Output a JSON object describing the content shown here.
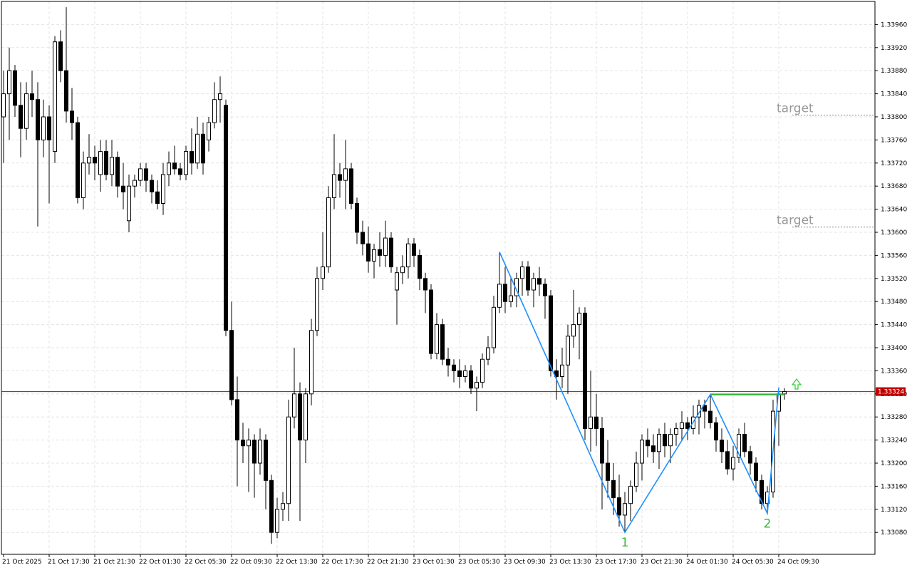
{
  "chart_data": {
    "type": "candlestick",
    "ylim": [
      1.33042,
      1.34
    ],
    "yticks": [
      {
        "value": 1.3396,
        "label": "1.33960"
      },
      {
        "value": 1.3392,
        "label": "1.33920"
      },
      {
        "value": 1.3388,
        "label": "1.33880"
      },
      {
        "value": 1.3384,
        "label": "1.33840"
      },
      {
        "value": 1.338,
        "label": "1.33800"
      },
      {
        "value": 1.3376,
        "label": "1.33760"
      },
      {
        "value": 1.3372,
        "label": "1.33720"
      },
      {
        "value": 1.3368,
        "label": "1.33680"
      },
      {
        "value": 1.3364,
        "label": "1.33640"
      },
      {
        "value": 1.336,
        "label": "1.33600"
      },
      {
        "value": 1.3356,
        "label": "1.33560"
      },
      {
        "value": 1.3352,
        "label": "1.33520"
      },
      {
        "value": 1.3348,
        "label": "1.33480"
      },
      {
        "value": 1.3344,
        "label": "1.33440"
      },
      {
        "value": 1.334,
        "label": "1.33400"
      },
      {
        "value": 1.3336,
        "label": "1.33360"
      },
      {
        "value": 1.3332,
        "label": "1.33320"
      },
      {
        "value": 1.3328,
        "label": "1.33280"
      },
      {
        "value": 1.3324,
        "label": "1.33240"
      },
      {
        "value": 1.332,
        "label": "1.33200"
      },
      {
        "value": 1.3316,
        "label": "1.33160"
      },
      {
        "value": 1.3312,
        "label": "1.33120"
      },
      {
        "value": 1.3308,
        "label": "1.33080"
      }
    ],
    "xticks": [
      {
        "value": 0,
        "label": "21 Oct 2025"
      },
      {
        "value": 8,
        "label": "21 Oct 17:30"
      },
      {
        "value": 16,
        "label": "21 Oct 21:30"
      },
      {
        "value": 24,
        "label": "22 Oct 01:30"
      },
      {
        "value": 32,
        "label": "22 Oct 05:30"
      },
      {
        "value": 40,
        "label": "22 Oct 09:30"
      },
      {
        "value": 48,
        "label": "22 Oct 13:30"
      },
      {
        "value": 56,
        "label": "22 Oct 17:30"
      },
      {
        "value": 64,
        "label": "22 Oct 21:30"
      },
      {
        "value": 72,
        "label": "23 Oct 01:30"
      },
      {
        "value": 80,
        "label": "23 Oct 05:30"
      },
      {
        "value": 88,
        "label": "23 Oct 09:30"
      },
      {
        "value": 96,
        "label": "23 Oct 13:30"
      },
      {
        "value": 104,
        "label": "23 Oct 17:30"
      },
      {
        "value": 112,
        "label": "23 Oct 21:30"
      },
      {
        "value": 120,
        "label": "24 Oct 01:30"
      },
      {
        "value": 128,
        "label": "24 Oct 05:30"
      },
      {
        "value": 136,
        "label": "24 Oct 09:30"
      }
    ],
    "grid": true,
    "ohlc": [
      [
        1.338,
        1.3388,
        1.3372,
        1.3384
      ],
      [
        1.3384,
        1.3392,
        1.3376,
        1.3388
      ],
      [
        1.3388,
        1.3389,
        1.338,
        1.3382
      ],
      [
        1.3382,
        1.3386,
        1.3373,
        1.3378
      ],
      [
        1.3378,
        1.3386,
        1.3376,
        1.3384
      ],
      [
        1.3384,
        1.3388,
        1.338,
        1.3383
      ],
      [
        1.3383,
        1.3386,
        1.3361,
        1.3376
      ],
      [
        1.3376,
        1.3383,
        1.3373,
        1.338
      ],
      [
        1.338,
        1.3382,
        1.3365,
        1.3376
      ],
      [
        1.3374,
        1.3394,
        1.3372,
        1.3393
      ],
      [
        1.3393,
        1.3395,
        1.3386,
        1.3388
      ],
      [
        1.3388,
        1.3399,
        1.3379,
        1.3381
      ],
      [
        1.3381,
        1.3385,
        1.3376,
        1.3379
      ],
      [
        1.3379,
        1.338,
        1.3365,
        1.3366
      ],
      [
        1.3366,
        1.3374,
        1.3364,
        1.3372
      ],
      [
        1.3372,
        1.3377,
        1.337,
        1.3373
      ],
      [
        1.3373,
        1.3375,
        1.3369,
        1.3372
      ],
      [
        1.337,
        1.3376,
        1.3367,
        1.3374
      ],
      [
        1.3374,
        1.3376,
        1.3369,
        1.337
      ],
      [
        1.337,
        1.3376,
        1.3368,
        1.3373
      ],
      [
        1.3373,
        1.3374,
        1.3366,
        1.3368
      ],
      [
        1.3368,
        1.3372,
        1.3364,
        1.3367
      ],
      [
        1.3362,
        1.337,
        1.336,
        1.3368
      ],
      [
        1.3368,
        1.337,
        1.3366,
        1.3369
      ],
      [
        1.3369,
        1.3372,
        1.3368,
        1.3371
      ],
      [
        1.3371,
        1.3372,
        1.3367,
        1.3369
      ],
      [
        1.3369,
        1.337,
        1.3365,
        1.3367
      ],
      [
        1.3367,
        1.3369,
        1.3364,
        1.3365
      ],
      [
        1.3365,
        1.3372,
        1.3363,
        1.337
      ],
      [
        1.337,
        1.3374,
        1.3368,
        1.3372
      ],
      [
        1.3372,
        1.3375,
        1.337,
        1.3371
      ],
      [
        1.3371,
        1.3372,
        1.3369,
        1.337
      ],
      [
        1.337,
        1.3375,
        1.3369,
        1.3374
      ],
      [
        1.3374,
        1.3378,
        1.337,
        1.3372
      ],
      [
        1.3372,
        1.338,
        1.3371,
        1.3377
      ],
      [
        1.3377,
        1.3379,
        1.337,
        1.3372
      ],
      [
        1.3376,
        1.338,
        1.3374,
        1.3379
      ],
      [
        1.3379,
        1.3386,
        1.3378,
        1.3383
      ],
      [
        1.3383,
        1.3387,
        1.3379,
        1.3384
      ],
      [
        1.3382,
        1.3383,
        1.3342,
        1.3343
      ],
      [
        1.3343,
        1.3348,
        1.333,
        1.3331
      ],
      [
        1.3331,
        1.3335,
        1.3316,
        1.3324
      ],
      [
        1.3324,
        1.3327,
        1.332,
        1.3323
      ],
      [
        1.3323,
        1.3326,
        1.3315,
        1.3324
      ],
      [
        1.3324,
        1.3325,
        1.3314,
        1.332
      ],
      [
        1.332,
        1.3326,
        1.3318,
        1.3324
      ],
      [
        1.3324,
        1.3325,
        1.3312,
        1.3317
      ],
      [
        1.3317,
        1.3318,
        1.3306,
        1.3308
      ],
      [
        1.3308,
        1.3314,
        1.3307,
        1.3312
      ],
      [
        1.3312,
        1.3315,
        1.331,
        1.3313
      ],
      [
        1.3313,
        1.3331,
        1.331,
        1.3328
      ],
      [
        1.3328,
        1.334,
        1.3326,
        1.3332
      ],
      [
        1.3332,
        1.3334,
        1.331,
        1.3324
      ],
      [
        1.3324,
        1.3333,
        1.332,
        1.3332
      ],
      [
        1.3332,
        1.3345,
        1.333,
        1.3343
      ],
      [
        1.3343,
        1.3354,
        1.3342,
        1.3352
      ],
      [
        1.3352,
        1.336,
        1.335,
        1.3354
      ],
      [
        1.3354,
        1.3368,
        1.3353,
        1.3366
      ],
      [
        1.3366,
        1.3377,
        1.3364,
        1.337
      ],
      [
        1.337,
        1.3372,
        1.3366,
        1.3369
      ],
      [
        1.3369,
        1.3376,
        1.3364,
        1.3371
      ],
      [
        1.3371,
        1.3372,
        1.3364,
        1.3365
      ],
      [
        1.3365,
        1.3366,
        1.3358,
        1.336
      ],
      [
        1.336,
        1.3362,
        1.3356,
        1.3358
      ],
      [
        1.3358,
        1.3361,
        1.3353,
        1.3355
      ],
      [
        1.3355,
        1.3358,
        1.3352,
        1.3357
      ],
      [
        1.3357,
        1.336,
        1.3354,
        1.3356
      ],
      [
        1.3356,
        1.3362,
        1.3354,
        1.3359
      ],
      [
        1.3359,
        1.336,
        1.3353,
        1.3354
      ],
      [
        1.335,
        1.3354,
        1.3344,
        1.3353
      ],
      [
        1.3353,
        1.3356,
        1.3351,
        1.3354
      ],
      [
        1.3354,
        1.3359,
        1.3352,
        1.3358
      ],
      [
        1.3358,
        1.3359,
        1.3354,
        1.3356
      ],
      [
        1.3356,
        1.3357,
        1.335,
        1.3352
      ],
      [
        1.3352,
        1.3353,
        1.3346,
        1.335
      ],
      [
        1.335,
        1.3351,
        1.3338,
        1.3339
      ],
      [
        1.3339,
        1.3346,
        1.3338,
        1.3344
      ],
      [
        1.3344,
        1.3345,
        1.3337,
        1.3338
      ],
      [
        1.3338,
        1.334,
        1.3335,
        1.3337
      ],
      [
        1.3337,
        1.3338,
        1.3334,
        1.3336
      ],
      [
        1.3336,
        1.3338,
        1.3333,
        1.3335
      ],
      [
        1.3335,
        1.3337,
        1.3334,
        1.3336
      ],
      [
        1.3336,
        1.3337,
        1.3332,
        1.3333
      ],
      [
        1.3333,
        1.3335,
        1.3329,
        1.3334
      ],
      [
        1.3334,
        1.3339,
        1.3333,
        1.3338
      ],
      [
        1.3338,
        1.3342,
        1.3337,
        1.334
      ],
      [
        1.334,
        1.3349,
        1.3339,
        1.3347
      ],
      [
        1.3347,
        1.33566,
        1.3346,
        1.3351
      ],
      [
        1.3351,
        1.3354,
        1.3346,
        1.3348
      ],
      [
        1.3348,
        1.3352,
        1.3347,
        1.3349
      ],
      [
        1.3349,
        1.3353,
        1.3347,
        1.3352
      ],
      [
        1.3352,
        1.3355,
        1.3349,
        1.3354
      ],
      [
        1.3354,
        1.3355,
        1.3349,
        1.335
      ],
      [
        1.335,
        1.3353,
        1.3347,
        1.3352
      ],
      [
        1.3352,
        1.3354,
        1.3349,
        1.3351
      ],
      [
        1.3351,
        1.3352,
        1.3345,
        1.3349
      ],
      [
        1.3349,
        1.335,
        1.3335,
        1.3336
      ],
      [
        1.3336,
        1.3338,
        1.3331,
        1.3335
      ],
      [
        1.3335,
        1.334,
        1.3333,
        1.3337
      ],
      [
        1.3337,
        1.3344,
        1.3332,
        1.3342
      ],
      [
        1.3342,
        1.335,
        1.334,
        1.3344
      ],
      [
        1.3344,
        1.3347,
        1.3338,
        1.3346
      ],
      [
        1.3346,
        1.3347,
        1.3324,
        1.3326
      ],
      [
        1.3326,
        1.3336,
        1.3322,
        1.3328
      ],
      [
        1.3328,
        1.3332,
        1.3323,
        1.3326
      ],
      [
        1.3326,
        1.3328,
        1.3312,
        1.332
      ],
      [
        1.332,
        1.3324,
        1.3314,
        1.3317
      ],
      [
        1.3317,
        1.332,
        1.3311,
        1.3314
      ],
      [
        1.3314,
        1.3318,
        1.3309,
        1.3311
      ],
      [
        1.3311,
        1.3315,
        1.3308,
        1.3313
      ],
      [
        1.3313,
        1.3317,
        1.331,
        1.3316
      ],
      [
        1.3316,
        1.3322,
        1.3315,
        1.332
      ],
      [
        1.332,
        1.3325,
        1.3317,
        1.3324
      ],
      [
        1.3324,
        1.3326,
        1.3321,
        1.3323
      ],
      [
        1.3323,
        1.3325,
        1.332,
        1.3322
      ],
      [
        1.3322,
        1.3326,
        1.3319,
        1.3325
      ],
      [
        1.3325,
        1.3327,
        1.3321,
        1.3323
      ],
      [
        1.3323,
        1.3326,
        1.332,
        1.3325
      ],
      [
        1.3325,
        1.3327,
        1.3323,
        1.3326
      ],
      [
        1.3326,
        1.3329,
        1.3324,
        1.3327
      ],
      [
        1.3327,
        1.3328,
        1.3324,
        1.3326
      ],
      [
        1.3326,
        1.333,
        1.3325,
        1.3328
      ],
      [
        1.3328,
        1.3331,
        1.3325,
        1.333
      ],
      [
        1.333,
        1.3331,
        1.3326,
        1.3329
      ],
      [
        1.3329,
        1.33319,
        1.3326,
        1.3327
      ],
      [
        1.3327,
        1.3328,
        1.3322,
        1.3324
      ],
      [
        1.3324,
        1.3326,
        1.332,
        1.3322
      ],
      [
        1.3322,
        1.3324,
        1.3318,
        1.3319
      ],
      [
        1.3319,
        1.3323,
        1.3317,
        1.3321
      ],
      [
        1.3321,
        1.3326,
        1.332,
        1.3325
      ],
      [
        1.3325,
        1.3327,
        1.3321,
        1.3322
      ],
      [
        1.3322,
        1.3323,
        1.3318,
        1.332
      ],
      [
        1.332,
        1.3321,
        1.3315,
        1.3317
      ],
      [
        1.3317,
        1.3318,
        1.3312,
        1.3313
      ],
      [
        1.3313,
        1.3316,
        1.33113,
        1.3315
      ],
      [
        1.3315,
        1.3331,
        1.3314,
        1.3329
      ],
      [
        1.3329,
        1.33331,
        1.3323,
        1.3332
      ],
      [
        1.3332,
        1.3333,
        1.3331,
        1.33324
      ]
    ],
    "current_price": {
      "value": 1.33324,
      "label": "1.33324"
    },
    "zigzag": [
      {
        "candle": 87,
        "price": 1.33566
      },
      {
        "candle": 109,
        "price": 1.3308
      },
      {
        "candle": 124,
        "price": 1.33319
      },
      {
        "candle": 134,
        "price": 1.33113
      },
      {
        "candle": 136,
        "price": 1.33331
      }
    ],
    "wave_labels": [
      "1",
      "2"
    ],
    "targets": [
      {
        "label": "target",
        "price": 1.33803
      },
      {
        "label": "target",
        "price": 1.33609
      }
    ]
  }
}
